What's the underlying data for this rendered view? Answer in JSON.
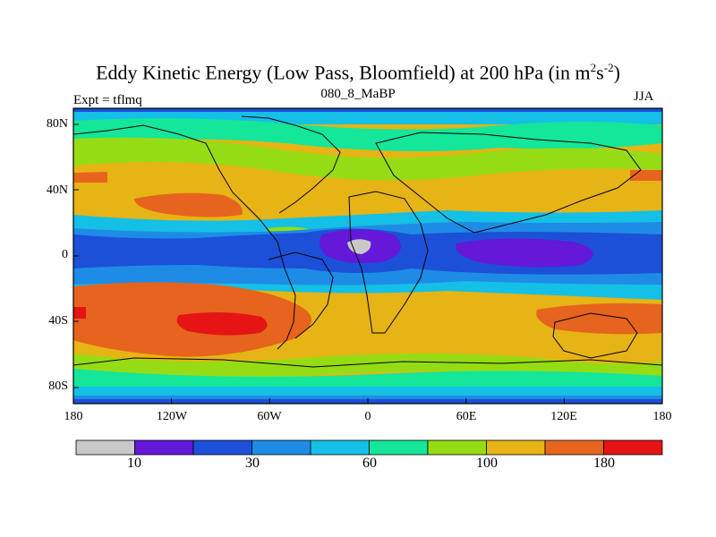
{
  "title": {
    "main": "Eddy Kinetic Energy (Low Pass, Bloomfield) at 200 hPa (in m",
    "sup1": "2",
    "mid": "s",
    "sup2": "-2",
    "end": ")"
  },
  "subtitle": "080_8_MaBP",
  "experiment": "Expt = tflmq",
  "season": "JJA",
  "axes": {
    "lat_ticks": [
      "80N",
      "40N",
      "0",
      "40S",
      "80S"
    ],
    "lon_ticks": [
      "180",
      "120W",
      "60W",
      "0",
      "60E",
      "120E",
      "180"
    ]
  },
  "colorbar": {
    "colors": [
      "#c8c8c8",
      "#6418d8",
      "#1c50d8",
      "#1e8ce6",
      "#14c0e6",
      "#14e69a",
      "#96dc14",
      "#e6b414",
      "#e6641e",
      "#e61414"
    ],
    "labels": [
      "10",
      "30",
      "60",
      "100",
      "180"
    ]
  },
  "palette": {
    "c1": "#6418d8",
    "c2": "#1c50d8",
    "c3": "#1e8ce6",
    "c4": "#14c0e6",
    "c5": "#14e69a",
    "c6": "#96dc14",
    "c7": "#e6b414",
    "c8": "#e6641e",
    "c9": "#e61414",
    "c0": "#c8c8c8",
    "coast": "#000000",
    "frame": "#000000"
  }
}
